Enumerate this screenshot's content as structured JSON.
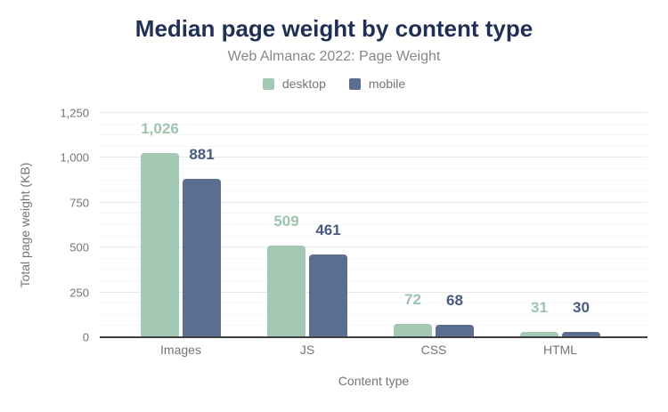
{
  "title": "Median page weight by content type",
  "subtitle": "Web Almanac 2022: Page Weight",
  "chart_data": {
    "type": "bar",
    "title": "Median page weight by content type",
    "subtitle": "Web Almanac 2022: Page Weight",
    "categories": [
      "Images",
      "JS",
      "CSS",
      "HTML"
    ],
    "series": [
      {
        "name": "desktop",
        "color": "#a3c9b4",
        "label_color": "#9cc4ae",
        "values": [
          1026,
          509,
          72,
          31
        ],
        "labels": [
          "1,026",
          "509",
          "72",
          "31"
        ]
      },
      {
        "name": "mobile",
        "color": "#5b6e91",
        "label_color": "#485a80",
        "values": [
          881,
          461,
          68,
          30
        ],
        "labels": [
          "881",
          "461",
          "68",
          "30"
        ]
      }
    ],
    "xlabel": "Content type",
    "ylabel": "Total page weight (KB)",
    "ylim": [
      0,
      1250
    ],
    "ytick_step": 250,
    "ytick_minor_divisions": 4,
    "yticks": [
      {
        "value": 0,
        "label": "0"
      },
      {
        "value": 250,
        "label": "250"
      },
      {
        "value": 500,
        "label": "500"
      },
      {
        "value": 750,
        "label": "750"
      },
      {
        "value": 1000,
        "label": "1,000"
      },
      {
        "value": 1250,
        "label": "1,250"
      }
    ],
    "grid": true,
    "legend_position": "top"
  },
  "colors": {
    "title": "#1f3054",
    "subtitle_text": "#878787",
    "axis_text": "#757575",
    "axis_line": "#3f3f3f",
    "grid_major": "#e9e9e9",
    "grid_minor": "#f6f6f6",
    "background": "#ffffff"
  }
}
